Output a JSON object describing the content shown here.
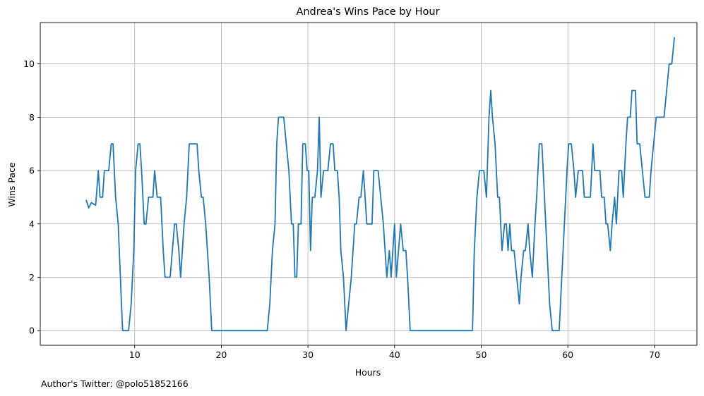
{
  "chart_data": {
    "type": "line",
    "title": "Andrea's Wins Pace by Hour",
    "xlabel": "Hours",
    "ylabel": "Wins Pace",
    "xlim": [
      -0.9,
      74.9
    ],
    "ylim": [
      -0.55,
      11.55
    ],
    "x_ticks": [
      10,
      20,
      30,
      40,
      50,
      60,
      70
    ],
    "y_ticks": [
      0,
      2,
      4,
      6,
      8,
      10
    ],
    "grid": true,
    "series": [
      {
        "color": "#1f77b4",
        "points": [
          [
            4.4,
            4.9
          ],
          [
            4.7,
            4.6
          ],
          [
            5.0,
            4.8
          ],
          [
            5.5,
            4.7
          ],
          [
            5.8,
            6
          ],
          [
            6.0,
            5
          ],
          [
            6.3,
            5
          ],
          [
            6.5,
            6
          ],
          [
            7.0,
            6
          ],
          [
            7.3,
            7
          ],
          [
            7.5,
            7
          ],
          [
            7.8,
            5
          ],
          [
            8.1,
            4
          ],
          [
            8.6,
            0
          ],
          [
            9.3,
            0
          ],
          [
            9.6,
            1
          ],
          [
            9.9,
            3
          ],
          [
            10.1,
            6
          ],
          [
            10.4,
            7
          ],
          [
            10.6,
            7
          ],
          [
            10.8,
            6
          ],
          [
            11.1,
            4
          ],
          [
            11.3,
            4
          ],
          [
            11.6,
            5
          ],
          [
            12.1,
            5
          ],
          [
            12.3,
            6
          ],
          [
            12.6,
            5
          ],
          [
            13.0,
            5
          ],
          [
            13.3,
            3
          ],
          [
            13.5,
            2
          ],
          [
            14.1,
            2
          ],
          [
            14.6,
            4
          ],
          [
            14.8,
            4
          ],
          [
            15.1,
            3
          ],
          [
            15.3,
            2
          ],
          [
            15.7,
            4
          ],
          [
            16.0,
            5
          ],
          [
            16.3,
            7
          ],
          [
            17.2,
            7
          ],
          [
            17.4,
            6
          ],
          [
            17.7,
            5
          ],
          [
            17.9,
            5
          ],
          [
            18.2,
            4
          ],
          [
            18.6,
            2
          ],
          [
            18.9,
            0
          ],
          [
            25.3,
            0
          ],
          [
            25.6,
            1
          ],
          [
            25.9,
            3
          ],
          [
            26.2,
            4
          ],
          [
            26.4,
            7
          ],
          [
            26.6,
            8
          ],
          [
            27.2,
            8
          ],
          [
            27.5,
            7
          ],
          [
            27.8,
            6
          ],
          [
            28.1,
            4
          ],
          [
            28.3,
            4
          ],
          [
            28.5,
            2
          ],
          [
            28.7,
            2
          ],
          [
            28.9,
            4
          ],
          [
            29.2,
            4
          ],
          [
            29.4,
            7
          ],
          [
            29.7,
            7
          ],
          [
            29.9,
            6
          ],
          [
            30.1,
            6
          ],
          [
            30.3,
            3
          ],
          [
            30.5,
            5
          ],
          [
            30.8,
            5
          ],
          [
            31.1,
            6
          ],
          [
            31.3,
            8
          ],
          [
            31.5,
            5
          ],
          [
            31.8,
            6
          ],
          [
            32.3,
            6
          ],
          [
            32.6,
            7
          ],
          [
            32.9,
            7
          ],
          [
            33.1,
            6
          ],
          [
            33.4,
            6
          ],
          [
            33.6,
            5
          ],
          [
            33.8,
            3
          ],
          [
            34.1,
            2
          ],
          [
            34.4,
            0
          ],
          [
            34.7,
            1
          ],
          [
            35.0,
            2
          ],
          [
            35.4,
            4
          ],
          [
            35.6,
            4
          ],
          [
            35.9,
            5
          ],
          [
            36.1,
            5
          ],
          [
            36.4,
            6
          ],
          [
            36.8,
            4
          ],
          [
            37.4,
            4
          ],
          [
            37.6,
            6
          ],
          [
            38.1,
            6
          ],
          [
            38.4,
            5
          ],
          [
            38.7,
            4
          ],
          [
            39.1,
            2
          ],
          [
            39.4,
            3
          ],
          [
            39.6,
            2
          ],
          [
            40.0,
            4
          ],
          [
            40.2,
            2
          ],
          [
            40.7,
            4
          ],
          [
            41.0,
            3
          ],
          [
            41.3,
            3
          ],
          [
            41.5,
            2
          ],
          [
            41.8,
            0
          ],
          [
            49.0,
            0
          ],
          [
            49.2,
            3
          ],
          [
            49.5,
            5
          ],
          [
            49.8,
            6
          ],
          [
            50.3,
            6
          ],
          [
            50.6,
            5
          ],
          [
            50.9,
            8
          ],
          [
            51.1,
            9
          ],
          [
            51.3,
            8
          ],
          [
            51.6,
            7
          ],
          [
            51.9,
            5
          ],
          [
            52.1,
            5
          ],
          [
            52.4,
            3
          ],
          [
            52.7,
            4
          ],
          [
            52.9,
            4
          ],
          [
            53.1,
            3
          ],
          [
            53.3,
            4
          ],
          [
            53.5,
            3
          ],
          [
            53.8,
            3
          ],
          [
            54.1,
            2
          ],
          [
            54.4,
            1
          ],
          [
            54.6,
            2
          ],
          [
            54.9,
            3
          ],
          [
            55.1,
            3
          ],
          [
            55.4,
            4
          ],
          [
            55.6,
            3
          ],
          [
            55.9,
            2
          ],
          [
            56.2,
            4
          ],
          [
            56.4,
            5
          ],
          [
            56.7,
            7
          ],
          [
            57.0,
            7
          ],
          [
            57.3,
            5
          ],
          [
            57.6,
            3
          ],
          [
            57.9,
            1
          ],
          [
            58.2,
            0
          ],
          [
            59.0,
            0
          ],
          [
            59.3,
            2
          ],
          [
            59.6,
            4
          ],
          [
            59.9,
            6
          ],
          [
            60.1,
            7
          ],
          [
            60.4,
            7
          ],
          [
            60.7,
            6
          ],
          [
            60.9,
            5
          ],
          [
            61.2,
            6
          ],
          [
            61.7,
            6
          ],
          [
            61.9,
            5
          ],
          [
            62.2,
            5
          ],
          [
            62.6,
            5
          ],
          [
            62.9,
            7
          ],
          [
            63.1,
            6
          ],
          [
            63.7,
            6
          ],
          [
            63.9,
            5
          ],
          [
            64.2,
            5
          ],
          [
            64.4,
            4
          ],
          [
            64.6,
            4
          ],
          [
            64.9,
            3
          ],
          [
            65.1,
            4
          ],
          [
            65.4,
            5
          ],
          [
            65.6,
            4
          ],
          [
            65.9,
            6
          ],
          [
            66.2,
            6
          ],
          [
            66.4,
            5
          ],
          [
            66.7,
            7
          ],
          [
            66.9,
            8
          ],
          [
            67.2,
            8
          ],
          [
            67.4,
            9
          ],
          [
            67.8,
            9
          ],
          [
            68.0,
            7
          ],
          [
            68.3,
            7
          ],
          [
            68.6,
            6
          ],
          [
            68.9,
            5
          ],
          [
            69.4,
            5
          ],
          [
            69.6,
            6
          ],
          [
            70.2,
            8
          ],
          [
            71.1,
            8
          ],
          [
            71.4,
            9
          ],
          [
            71.7,
            10
          ],
          [
            72.0,
            10
          ],
          [
            72.3,
            11
          ]
        ]
      }
    ]
  },
  "footer": {
    "author_text": "Author's Twitter: @polo51852166"
  }
}
